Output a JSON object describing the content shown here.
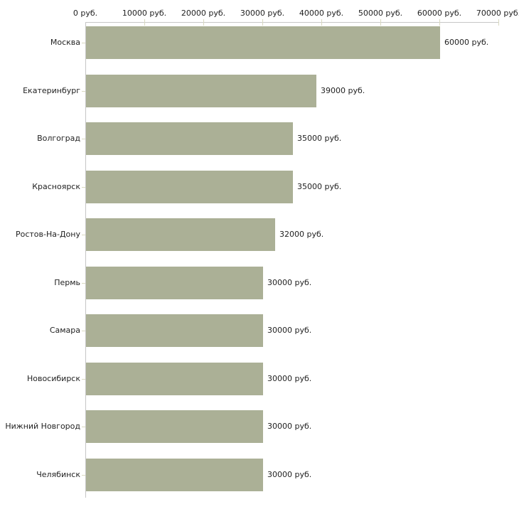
{
  "chart_data": {
    "type": "bar",
    "orientation": "horizontal",
    "title": "",
    "xlabel": "",
    "ylabel": "",
    "legend": "none",
    "grid": "off",
    "xlim": [
      0,
      70000
    ],
    "categories": [
      "Москва",
      "Екатеринбург",
      "Волгоград",
      "Красноярск",
      "Ростов-На-Дону",
      "Пермь",
      "Самара",
      "Новосибирск",
      "Нижний Новгород",
      "Челябинск"
    ],
    "values": [
      60000,
      39000,
      35000,
      35000,
      32000,
      30000,
      30000,
      30000,
      30000,
      30000
    ],
    "value_labels": [
      "60000 руб.",
      "39000 руб.",
      "35000 руб.",
      "35000 руб.",
      "32000 руб.",
      "30000 руб.",
      "30000 руб.",
      "30000 руб.",
      "30000 руб.",
      "30000 руб."
    ],
    "x_ticks": [
      {
        "value": 0,
        "label": "0 руб."
      },
      {
        "value": 10000,
        "label": "10000 руб."
      },
      {
        "value": 20000,
        "label": "20000 руб."
      },
      {
        "value": 30000,
        "label": "30000 руб."
      },
      {
        "value": 40000,
        "label": "40000 руб."
      },
      {
        "value": 50000,
        "label": "50000 руб."
      },
      {
        "value": 60000,
        "label": "60000 руб."
      },
      {
        "value": 70000,
        "label": "70000 руб."
      }
    ],
    "colors": {
      "bar": "#abb096",
      "axis": "#c6c6c6",
      "tick": "#d9d9c1",
      "text": "#222222",
      "background": "#ffffff"
    }
  }
}
